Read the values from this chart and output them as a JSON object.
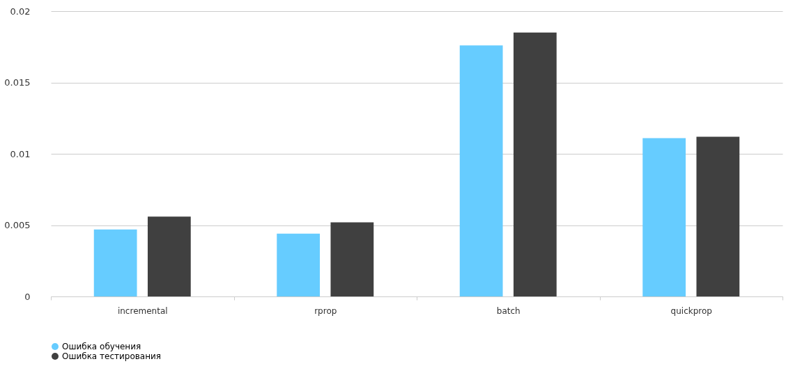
{
  "chart_data": {
    "type": "bar",
    "categories": [
      "incremental",
      "rprop",
      "batch",
      "quickprop"
    ],
    "series": [
      {
        "name": "Ошибка обучения",
        "color": "#66ccff",
        "values": [
          0.0047,
          0.0044,
          0.0176,
          0.0111
        ]
      },
      {
        "name": "Ошибка тестирования",
        "color": "#404040",
        "values": [
          0.0056,
          0.0052,
          0.0185,
          0.0112
        ]
      }
    ],
    "ylim": [
      0,
      0.02
    ],
    "yticks": [
      0,
      0.005,
      0.01,
      0.015,
      0.02
    ],
    "grid": "y",
    "legend": "bottom"
  }
}
